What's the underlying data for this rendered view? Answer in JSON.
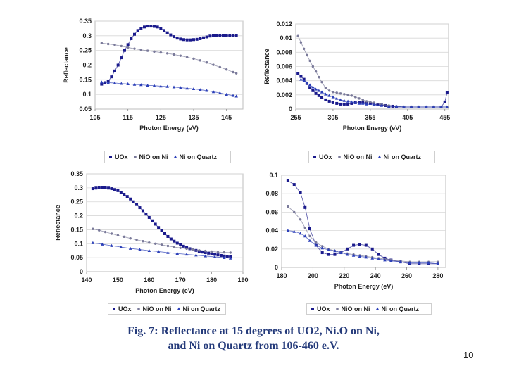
{
  "caption": {
    "line1": "Fig. 7: Reflectance at 15 degrees of UO2, Ni.O on Ni,",
    "line2": "and Ni on Quartz from 106-460 e.V."
  },
  "page_number": "10",
  "legend_labels": [
    "UOx",
    "NiO on Ni",
    "Ni on Quartz"
  ],
  "colors": {
    "UOx": "#1a1a8c",
    "NiO on Ni": "#7a7a9a",
    "Ni on Quartz": "#2b3fb8"
  },
  "chart_data": [
    {
      "type": "line",
      "xlabel": "Photon Energy (eV)",
      "ylabel": "Reflectance",
      "xlim": [
        105,
        150
      ],
      "ylim": [
        0.05,
        0.35
      ],
      "xticks": [
        "105",
        "115",
        "125",
        "135",
        "145"
      ],
      "yticks": [
        "0.05",
        "0.1",
        "0.15",
        "0.2",
        "0.25",
        "0.3",
        "0.35"
      ],
      "legend": [
        "UOx",
        "NiO on Ni",
        "Ni on Quartz"
      ],
      "series": [
        {
          "name": "UOx",
          "x": [
            107,
            108,
            109,
            110,
            111,
            112,
            113,
            114,
            115,
            116,
            117,
            118,
            119,
            120,
            121,
            122,
            123,
            124,
            125,
            126,
            127,
            128,
            129,
            130,
            131,
            132,
            133,
            134,
            135,
            136,
            137,
            138,
            139,
            140,
            141,
            142,
            143,
            144,
            145,
            146,
            147,
            148
          ],
          "y": [
            0.135,
            0.14,
            0.145,
            0.16,
            0.18,
            0.2,
            0.225,
            0.25,
            0.27,
            0.29,
            0.305,
            0.318,
            0.326,
            0.33,
            0.333,
            0.333,
            0.332,
            0.33,
            0.325,
            0.318,
            0.31,
            0.303,
            0.297,
            0.292,
            0.289,
            0.287,
            0.286,
            0.286,
            0.287,
            0.288,
            0.29,
            0.293,
            0.296,
            0.299,
            0.3,
            0.301,
            0.301,
            0.301,
            0.3,
            0.3,
            0.3,
            0.3
          ]
        },
        {
          "name": "NiO on Ni",
          "x": [
            107,
            109,
            111,
            113,
            115,
            117,
            119,
            121,
            123,
            125,
            127,
            129,
            131,
            133,
            135,
            137,
            139,
            141,
            143,
            145,
            147,
            148
          ],
          "y": [
            0.275,
            0.272,
            0.269,
            0.265,
            0.26,
            0.256,
            0.252,
            0.249,
            0.246,
            0.243,
            0.24,
            0.236,
            0.232,
            0.227,
            0.222,
            0.216,
            0.209,
            0.201,
            0.193,
            0.185,
            0.176,
            0.172
          ]
        },
        {
          "name": "Ni on Quartz",
          "x": [
            107,
            109,
            111,
            113,
            115,
            117,
            119,
            121,
            123,
            125,
            127,
            129,
            131,
            133,
            135,
            137,
            139,
            141,
            143,
            145,
            147,
            148
          ],
          "y": [
            0.142,
            0.14,
            0.139,
            0.137,
            0.136,
            0.134,
            0.133,
            0.131,
            0.13,
            0.128,
            0.127,
            0.125,
            0.123,
            0.121,
            0.119,
            0.116,
            0.113,
            0.109,
            0.105,
            0.1,
            0.096,
            0.094
          ]
        }
      ]
    },
    {
      "type": "line",
      "xlabel": "Photon Energy (eV)",
      "ylabel": "Reflectance",
      "xlim": [
        255,
        460
      ],
      "ylim": [
        0,
        0.012
      ],
      "xticks": [
        "255",
        "305",
        "355",
        "405",
        "455"
      ],
      "yticks": [
        "0",
        "0.002",
        "0.004",
        "0.006",
        "0.008",
        "0.01",
        "0.012"
      ],
      "legend": [
        "UOx",
        "NiO on Ni",
        "Ni on Quartz"
      ],
      "series": [
        {
          "name": "UOx",
          "x": [
            258,
            262,
            266,
            270,
            274,
            278,
            282,
            286,
            290,
            295,
            300,
            305,
            310,
            315,
            320,
            325,
            330,
            335,
            340,
            345,
            350,
            355,
            360,
            365,
            370,
            375,
            380,
            385,
            390,
            400,
            410,
            420,
            430,
            440,
            450,
            455,
            458
          ],
          "y": [
            0.005,
            0.0046,
            0.0042,
            0.0036,
            0.003,
            0.0026,
            0.0022,
            0.0019,
            0.0016,
            0.0013,
            0.0011,
            0.0009,
            0.0008,
            0.0007,
            0.0007,
            0.0007,
            0.0008,
            0.0009,
            0.0009,
            0.0009,
            0.0009,
            0.0008,
            0.0007,
            0.0006,
            0.0006,
            0.0005,
            0.0004,
            0.0004,
            0.0003,
            0.0003,
            0.0003,
            0.0003,
            0.0003,
            0.0003,
            0.0003,
            0.001,
            0.0023
          ]
        },
        {
          "name": "NiO on Ni",
          "x": [
            258,
            262,
            266,
            270,
            274,
            278,
            282,
            286,
            290,
            295,
            300,
            305,
            310,
            315,
            320,
            325,
            330,
            335,
            340,
            345,
            350,
            355,
            360,
            370,
            380,
            390,
            400,
            410,
            420,
            430,
            440,
            450,
            458
          ],
          "y": [
            0.0103,
            0.0094,
            0.0085,
            0.0076,
            0.0068,
            0.006,
            0.0053,
            0.0045,
            0.0038,
            0.003,
            0.0026,
            0.0024,
            0.0023,
            0.0022,
            0.0021,
            0.002,
            0.0019,
            0.0017,
            0.0015,
            0.0013,
            0.0011,
            0.001,
            0.0009,
            0.0007,
            0.0005,
            0.0004,
            0.0003,
            0.0003,
            0.0003,
            0.0003,
            0.0003,
            0.0003,
            0.0003
          ]
        },
        {
          "name": "Ni on Quartz",
          "x": [
            262,
            266,
            270,
            274,
            278,
            282,
            286,
            290,
            295,
            300,
            305,
            310,
            315,
            320,
            325,
            330,
            335,
            340,
            345,
            350,
            360,
            370,
            380,
            390,
            400,
            410,
            420,
            430,
            440,
            450,
            458
          ],
          "y": [
            0.0042,
            0.004,
            0.0037,
            0.0034,
            0.0031,
            0.0028,
            0.0026,
            0.0024,
            0.0021,
            0.0019,
            0.0017,
            0.0015,
            0.0013,
            0.0012,
            0.0011,
            0.001,
            0.0009,
            0.0008,
            0.0008,
            0.0007,
            0.0006,
            0.0005,
            0.0004,
            0.0004,
            0.0003,
            0.0003,
            0.0003,
            0.0003,
            0.0003,
            0.0003,
            0.0003
          ]
        }
      ]
    },
    {
      "type": "line",
      "xlabel": "Photon Energy (eV)",
      "ylabel": "Reflectance",
      "xlim": [
        140,
        190
      ],
      "ylim": [
        0,
        0.35
      ],
      "xticks": [
        "140",
        "150",
        "160",
        "170",
        "180",
        "190"
      ],
      "yticks": [
        "0",
        "0.05",
        "0.1",
        "0.15",
        "0.2",
        "0.25",
        "0.3",
        "0.35"
      ],
      "legend": [
        "UOx",
        "NiO on Ni",
        "Ni on Quartz"
      ],
      "series": [
        {
          "name": "UOx",
          "x": [
            142,
            143,
            144,
            145,
            146,
            147,
            148,
            149,
            150,
            151,
            152,
            153,
            154,
            155,
            156,
            157,
            158,
            159,
            160,
            161,
            162,
            163,
            164,
            165,
            166,
            167,
            168,
            169,
            170,
            171,
            172,
            173,
            174,
            175,
            176,
            177,
            178,
            179,
            180,
            181,
            182,
            183,
            184,
            185,
            186
          ],
          "y": [
            0.297,
            0.299,
            0.3,
            0.3,
            0.3,
            0.299,
            0.297,
            0.294,
            0.29,
            0.284,
            0.277,
            0.269,
            0.26,
            0.25,
            0.24,
            0.229,
            0.218,
            0.206,
            0.194,
            0.182,
            0.17,
            0.158,
            0.147,
            0.136,
            0.126,
            0.117,
            0.109,
            0.102,
            0.096,
            0.091,
            0.086,
            0.082,
            0.079,
            0.076,
            0.073,
            0.07,
            0.068,
            0.066,
            0.064,
            0.062,
            0.06,
            0.058,
            0.056,
            0.055,
            0.054
          ]
        },
        {
          "name": "NiO on Ni",
          "x": [
            142,
            144,
            146,
            148,
            150,
            152,
            154,
            156,
            158,
            160,
            162,
            164,
            166,
            168,
            170,
            172,
            174,
            176,
            178,
            180,
            182,
            184,
            186
          ],
          "y": [
            0.153,
            0.148,
            0.142,
            0.136,
            0.13,
            0.125,
            0.119,
            0.114,
            0.109,
            0.104,
            0.1,
            0.096,
            0.092,
            0.088,
            0.085,
            0.082,
            0.079,
            0.076,
            0.074,
            0.072,
            0.07,
            0.069,
            0.068
          ]
        },
        {
          "name": "Ni on Quartz",
          "x": [
            142,
            145,
            148,
            151,
            154,
            157,
            160,
            163,
            166,
            169,
            172,
            175,
            178,
            181,
            184,
            186
          ],
          "y": [
            0.103,
            0.098,
            0.093,
            0.088,
            0.083,
            0.079,
            0.075,
            0.072,
            0.068,
            0.065,
            0.062,
            0.059,
            0.056,
            0.053,
            0.05,
            0.048
          ]
        }
      ]
    },
    {
      "type": "line",
      "xlabel": "Photon Energy (eV)",
      "ylabel": "Reflectance",
      "xlim": [
        180,
        285
      ],
      "ylim": [
        0,
        0.1
      ],
      "xticks": [
        "180",
        "200",
        "220",
        "240",
        "260",
        "280"
      ],
      "yticks": [
        "0",
        "0.02",
        "0.04",
        "0.06",
        "0.08",
        "0.1"
      ],
      "legend": [
        "UOx",
        "NiO on Ni",
        "Ni on Quartz"
      ],
      "series": [
        {
          "name": "UOx",
          "x": [
            184,
            188,
            192,
            195,
            198,
            202,
            206,
            210,
            214,
            218,
            222,
            226,
            230,
            234,
            238,
            242,
            246,
            250,
            256,
            262,
            268,
            274,
            280
          ],
          "y": [
            0.094,
            0.09,
            0.081,
            0.065,
            0.042,
            0.024,
            0.016,
            0.014,
            0.014,
            0.016,
            0.02,
            0.024,
            0.025,
            0.024,
            0.02,
            0.014,
            0.01,
            0.008,
            0.006,
            0.004,
            0.004,
            0.004,
            0.004
          ]
        },
        {
          "name": "NiO on Ni",
          "x": [
            184,
            188,
            192,
            195,
            198,
            202,
            206,
            210,
            214,
            218,
            222,
            226,
            230,
            234,
            238,
            242,
            246,
            250,
            256,
            262,
            268,
            274,
            280
          ],
          "y": [
            0.066,
            0.06,
            0.052,
            0.043,
            0.034,
            0.027,
            0.023,
            0.02,
            0.018,
            0.016,
            0.015,
            0.014,
            0.013,
            0.012,
            0.011,
            0.01,
            0.009,
            0.008,
            0.007,
            0.006,
            0.006,
            0.006,
            0.006
          ]
        },
        {
          "name": "Ni on Quartz",
          "x": [
            184,
            188,
            192,
            195,
            198,
            202,
            206,
            210,
            214,
            218,
            222,
            226,
            230,
            234,
            238,
            242,
            246,
            250,
            256,
            262,
            268,
            274,
            280
          ],
          "y": [
            0.04,
            0.039,
            0.037,
            0.034,
            0.029,
            0.024,
            0.021,
            0.019,
            0.018,
            0.016,
            0.014,
            0.013,
            0.012,
            0.011,
            0.01,
            0.009,
            0.008,
            0.007,
            0.006,
            0.005,
            0.005,
            0.005,
            0.004
          ]
        }
      ]
    }
  ]
}
